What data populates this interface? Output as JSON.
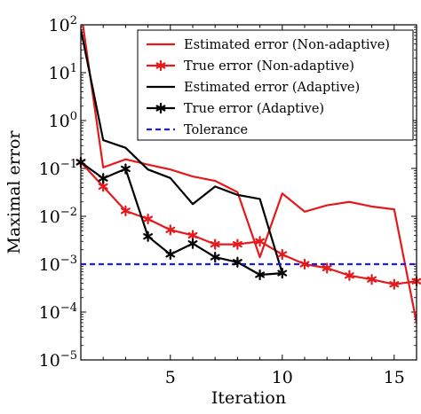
{
  "chart_data": {
    "type": "line",
    "xlabel": "Iteration",
    "ylabel": "Maximal error",
    "xlim": [
      1,
      16
    ],
    "ylim": [
      1e-05,
      100
    ],
    "yscale": "log",
    "grid": false,
    "legend_position": "top-right",
    "x_ticks": [
      5,
      10,
      15
    ],
    "x_tick_labels": [
      "5",
      "10",
      "15"
    ],
    "y_ticks": [
      -5,
      -4,
      -3,
      -2,
      -1,
      0,
      1,
      2
    ],
    "y_tick_labels": [
      "10",
      "10",
      "10",
      "10",
      "10",
      "10",
      "10",
      "10"
    ],
    "y_tick_exponents": [
      "−5",
      "−4",
      "−3",
      "−2",
      "−1",
      "0",
      "1",
      "2"
    ],
    "series": [
      {
        "name": "Estimated error (Non-adaptive)",
        "color": "#e41a1c",
        "marker": "none",
        "style": "solid",
        "x": [
          1,
          2,
          3,
          4,
          5,
          6,
          7,
          8,
          9,
          10,
          11,
          12,
          13,
          14,
          15,
          16
        ],
        "y": [
          200,
          0.105,
          0.155,
          0.12,
          0.095,
          0.068,
          0.055,
          0.032,
          0.0014,
          0.03,
          0.0125,
          0.017,
          0.02,
          0.016,
          0.014,
          6e-05
        ]
      },
      {
        "name": "True error (Non-adaptive)",
        "color": "#e41a1c",
        "marker": "star",
        "style": "solid",
        "x": [
          1,
          2,
          3,
          4,
          5,
          6,
          7,
          8,
          9,
          10,
          11,
          12,
          13,
          14,
          15,
          16
        ],
        "y": [
          0.135,
          0.042,
          0.013,
          0.0088,
          0.0052,
          0.004,
          0.0026,
          0.0026,
          0.003,
          0.0016,
          0.001,
          0.00083,
          0.00058,
          0.00048,
          0.00038,
          0.00044
        ]
      },
      {
        "name": "Estimated error (Adaptive)",
        "color": "#000000",
        "marker": "none",
        "style": "solid",
        "x": [
          1,
          2,
          3,
          4,
          5,
          6,
          7,
          8,
          9,
          10
        ],
        "y": [
          80,
          0.39,
          0.27,
          0.095,
          0.063,
          0.018,
          0.042,
          0.028,
          0.023,
          0.00065
        ]
      },
      {
        "name": "True error (Adaptive)",
        "color": "#000000",
        "marker": "star",
        "style": "solid",
        "x": [
          1,
          2,
          3,
          4,
          5,
          6,
          7,
          8,
          9,
          10
        ],
        "y": [
          0.135,
          0.062,
          0.098,
          0.0038,
          0.0016,
          0.0027,
          0.0014,
          0.0011,
          0.0006,
          0.00065
        ]
      },
      {
        "name": "Tolerance",
        "color": "#1c1cf0",
        "marker": "none",
        "style": "dashed",
        "x": [
          1,
          16
        ],
        "y": [
          0.001,
          0.001
        ]
      }
    ]
  }
}
